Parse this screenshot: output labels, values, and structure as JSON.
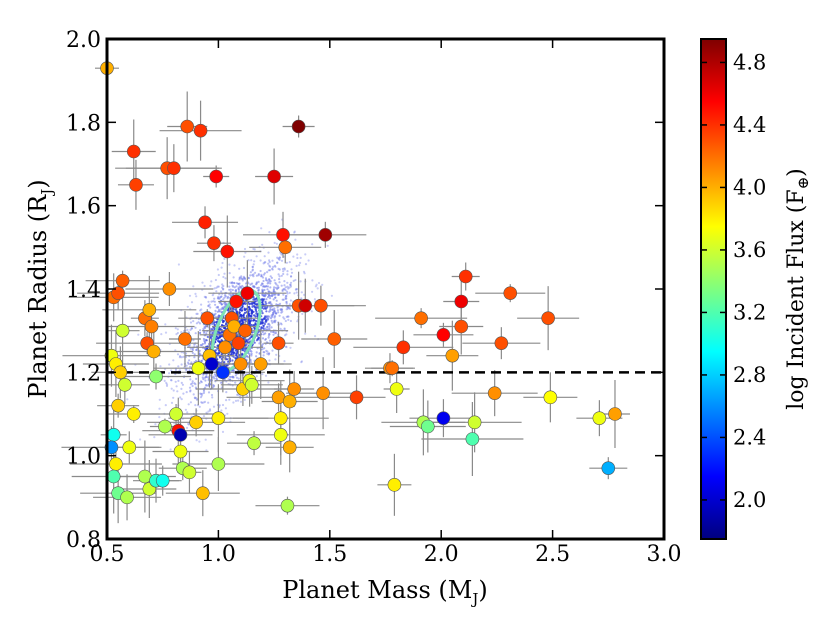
{
  "chart_data": {
    "type": "scatter",
    "title": "",
    "xlabel": "Planet Mass (M",
    "xlabel_sub": "J",
    "xlabel_close": ")",
    "ylabel": "Planet Radius (R",
    "ylabel_sub": "J",
    "ylabel_close": ")",
    "xlim": [
      0.5,
      3.0
    ],
    "ylim": [
      0.8,
      2.0
    ],
    "xticks": [
      "0.5",
      "1.0",
      "1.5",
      "2.0",
      "2.5",
      "3.0"
    ],
    "yticks": [
      "0.8",
      "1.0",
      "1.2",
      "1.4",
      "1.6",
      "1.8",
      "2.0"
    ],
    "reference_line_y": 1.2,
    "colorbar": {
      "label": "log Incident Flux (F",
      "label_sub": "⊕",
      "label_close": ")",
      "range": [
        1.75,
        4.95
      ],
      "ticks": [
        "2.0",
        "2.4",
        "2.8",
        "3.2",
        "3.6",
        "4.0",
        "4.4",
        "4.8"
      ],
      "colormap": [
        "#00007f",
        "#0000ff",
        "#007fff",
        "#00ffff",
        "#7fff7f",
        "#ffff00",
        "#ff7f00",
        "#ff0000",
        "#7f0000"
      ]
    },
    "highlight_ellipse": {
      "center_mass": 1.08,
      "center_radius": 1.3,
      "color": "#7fe3b5"
    },
    "points": [
      {
        "x": 0.5,
        "y": 1.93,
        "flux": 4.0
      },
      {
        "x": 0.52,
        "y": 1.24,
        "flux": 3.7
      },
      {
        "x": 0.53,
        "y": 1.38,
        "flux": 4.2
      },
      {
        "x": 0.55,
        "y": 1.39,
        "flux": 4.3
      },
      {
        "x": 0.57,
        "y": 1.42,
        "flux": 4.25
      },
      {
        "x": 0.54,
        "y": 1.22,
        "flux": 3.8
      },
      {
        "x": 0.56,
        "y": 1.2,
        "flux": 3.9
      },
      {
        "x": 0.58,
        "y": 1.17,
        "flux": 3.6
      },
      {
        "x": 0.55,
        "y": 1.12,
        "flux": 3.9
      },
      {
        "x": 0.57,
        "y": 1.3,
        "flux": 3.6
      },
      {
        "x": 0.53,
        "y": 1.05,
        "flux": 3.0
      },
      {
        "x": 0.52,
        "y": 1.02,
        "flux": 2.6
      },
      {
        "x": 0.54,
        "y": 0.98,
        "flux": 3.8
      },
      {
        "x": 0.53,
        "y": 0.95,
        "flux": 3.2
      },
      {
        "x": 0.55,
        "y": 0.91,
        "flux": 3.3
      },
      {
        "x": 0.59,
        "y": 0.9,
        "flux": 3.5
      },
      {
        "x": 0.6,
        "y": 1.02,
        "flux": 3.7
      },
      {
        "x": 0.62,
        "y": 1.1,
        "flux": 3.8
      },
      {
        "x": 0.62,
        "y": 1.73,
        "flux": 4.4
      },
      {
        "x": 0.63,
        "y": 1.65,
        "flux": 4.35
      },
      {
        "x": 0.67,
        "y": 1.33,
        "flux": 4.2
      },
      {
        "x": 0.68,
        "y": 1.27,
        "flux": 4.3
      },
      {
        "x": 0.69,
        "y": 1.35,
        "flux": 4.0
      },
      {
        "x": 0.7,
        "y": 1.31,
        "flux": 4.15
      },
      {
        "x": 0.71,
        "y": 1.25,
        "flux": 4.0
      },
      {
        "x": 0.72,
        "y": 1.19,
        "flux": 3.4
      },
      {
        "x": 0.67,
        "y": 0.95,
        "flux": 3.5
      },
      {
        "x": 0.69,
        "y": 0.92,
        "flux": 3.6
      },
      {
        "x": 0.72,
        "y": 0.94,
        "flux": 3.1
      },
      {
        "x": 0.75,
        "y": 0.94,
        "flux": 3.0
      },
      {
        "x": 0.76,
        "y": 1.07,
        "flux": 3.5
      },
      {
        "x": 0.77,
        "y": 1.69,
        "flux": 4.3
      },
      {
        "x": 0.8,
        "y": 1.69,
        "flux": 4.4
      },
      {
        "x": 0.78,
        "y": 1.4,
        "flux": 4.1
      },
      {
        "x": 0.81,
        "y": 1.1,
        "flux": 3.6
      },
      {
        "x": 0.82,
        "y": 1.06,
        "flux": 4.5
      },
      {
        "x": 0.83,
        "y": 1.05,
        "flux": 1.9
      },
      {
        "x": 0.83,
        "y": 1.01,
        "flux": 3.7
      },
      {
        "x": 0.84,
        "y": 0.97,
        "flux": 3.5
      },
      {
        "x": 0.86,
        "y": 1.79,
        "flux": 4.3
      },
      {
        "x": 0.85,
        "y": 1.28,
        "flux": 4.2
      },
      {
        "x": 0.87,
        "y": 0.96,
        "flux": 3.6
      },
      {
        "x": 0.9,
        "y": 1.08,
        "flux": 3.9
      },
      {
        "x": 0.91,
        "y": 1.21,
        "flux": 3.7
      },
      {
        "x": 0.92,
        "y": 1.78,
        "flux": 4.4
      },
      {
        "x": 0.93,
        "y": 0.91,
        "flux": 3.95
      },
      {
        "x": 0.94,
        "y": 1.56,
        "flux": 4.45
      },
      {
        "x": 0.95,
        "y": 1.33,
        "flux": 4.3
      },
      {
        "x": 0.96,
        "y": 1.24,
        "flux": 3.95
      },
      {
        "x": 0.97,
        "y": 1.22,
        "flux": 2.0
      },
      {
        "x": 0.98,
        "y": 1.51,
        "flux": 4.4
      },
      {
        "x": 0.99,
        "y": 1.67,
        "flux": 4.55
      },
      {
        "x": 1.0,
        "y": 1.09,
        "flux": 3.8
      },
      {
        "x": 1.0,
        "y": 0.98,
        "flux": 3.5
      },
      {
        "x": 1.02,
        "y": 1.2,
        "flux": 2.3
      },
      {
        "x": 1.03,
        "y": 1.26,
        "flux": 4.1
      },
      {
        "x": 1.04,
        "y": 1.49,
        "flux": 4.5
      },
      {
        "x": 1.05,
        "y": 1.29,
        "flux": 4.2
      },
      {
        "x": 1.06,
        "y": 1.33,
        "flux": 4.3
      },
      {
        "x": 1.07,
        "y": 1.31,
        "flux": 4.0
      },
      {
        "x": 1.08,
        "y": 1.37,
        "flux": 4.5
      },
      {
        "x": 1.09,
        "y": 1.27,
        "flux": 4.35
      },
      {
        "x": 1.1,
        "y": 1.22,
        "flux": 4.1
      },
      {
        "x": 1.11,
        "y": 1.16,
        "flux": 3.9
      },
      {
        "x": 1.12,
        "y": 1.3,
        "flux": 4.25
      },
      {
        "x": 1.13,
        "y": 1.39,
        "flux": 4.6
      },
      {
        "x": 1.14,
        "y": 1.18,
        "flux": 3.7
      },
      {
        "x": 1.15,
        "y": 1.17,
        "flux": 3.6
      },
      {
        "x": 1.16,
        "y": 1.03,
        "flux": 3.55
      },
      {
        "x": 1.19,
        "y": 1.22,
        "flux": 4.05
      },
      {
        "x": 1.25,
        "y": 1.67,
        "flux": 4.65
      },
      {
        "x": 1.27,
        "y": 1.27,
        "flux": 4.3
      },
      {
        "x": 1.27,
        "y": 1.14,
        "flux": 4.05
      },
      {
        "x": 1.28,
        "y": 1.09,
        "flux": 3.8
      },
      {
        "x": 1.28,
        "y": 1.05,
        "flux": 3.7
      },
      {
        "x": 1.29,
        "y": 1.53,
        "flux": 4.5
      },
      {
        "x": 1.3,
        "y": 1.5,
        "flux": 4.2
      },
      {
        "x": 1.31,
        "y": 0.88,
        "flux": 3.5
      },
      {
        "x": 1.32,
        "y": 1.13,
        "flux": 4.0
      },
      {
        "x": 1.32,
        "y": 1.02,
        "flux": 4.0
      },
      {
        "x": 1.34,
        "y": 1.16,
        "flux": 4.1
      },
      {
        "x": 1.36,
        "y": 1.79,
        "flux": 4.95
      },
      {
        "x": 1.36,
        "y": 1.36,
        "flux": 4.3
      },
      {
        "x": 1.39,
        "y": 1.36,
        "flux": 4.7
      },
      {
        "x": 1.46,
        "y": 1.36,
        "flux": 4.3
      },
      {
        "x": 1.48,
        "y": 1.53,
        "flux": 4.85
      },
      {
        "x": 1.47,
        "y": 1.15,
        "flux": 4.1
      },
      {
        "x": 1.52,
        "y": 1.28,
        "flux": 4.25
      },
      {
        "x": 1.62,
        "y": 1.14,
        "flux": 4.35
      },
      {
        "x": 1.77,
        "y": 1.21,
        "flux": 4.1
      },
      {
        "x": 1.78,
        "y": 1.21,
        "flux": 4.2
      },
      {
        "x": 1.79,
        "y": 0.93,
        "flux": 3.8
      },
      {
        "x": 1.8,
        "y": 1.16,
        "flux": 3.7
      },
      {
        "x": 1.83,
        "y": 1.26,
        "flux": 4.4
      },
      {
        "x": 1.91,
        "y": 1.33,
        "flux": 4.2
      },
      {
        "x": 1.92,
        "y": 1.08,
        "flux": 3.5
      },
      {
        "x": 1.94,
        "y": 1.07,
        "flux": 3.3
      },
      {
        "x": 2.01,
        "y": 1.09,
        "flux": 2.1
      },
      {
        "x": 2.01,
        "y": 1.29,
        "flux": 4.55
      },
      {
        "x": 2.05,
        "y": 1.24,
        "flux": 4.05
      },
      {
        "x": 2.09,
        "y": 1.31,
        "flux": 4.3
      },
      {
        "x": 2.09,
        "y": 1.37,
        "flux": 4.6
      },
      {
        "x": 2.11,
        "y": 1.43,
        "flux": 4.4
      },
      {
        "x": 2.14,
        "y": 1.04,
        "flux": 3.2
      },
      {
        "x": 2.15,
        "y": 1.08,
        "flux": 3.6
      },
      {
        "x": 2.24,
        "y": 1.15,
        "flux": 4.1
      },
      {
        "x": 2.27,
        "y": 1.27,
        "flux": 4.3
      },
      {
        "x": 2.31,
        "y": 1.39,
        "flux": 4.3
      },
      {
        "x": 2.48,
        "y": 1.33,
        "flux": 4.3
      },
      {
        "x": 2.49,
        "y": 1.14,
        "flux": 3.75
      },
      {
        "x": 2.71,
        "y": 1.09,
        "flux": 3.7
      },
      {
        "x": 2.75,
        "y": 0.97,
        "flux": 2.7
      },
      {
        "x": 2.78,
        "y": 1.1,
        "flux": 4.05
      }
    ]
  }
}
